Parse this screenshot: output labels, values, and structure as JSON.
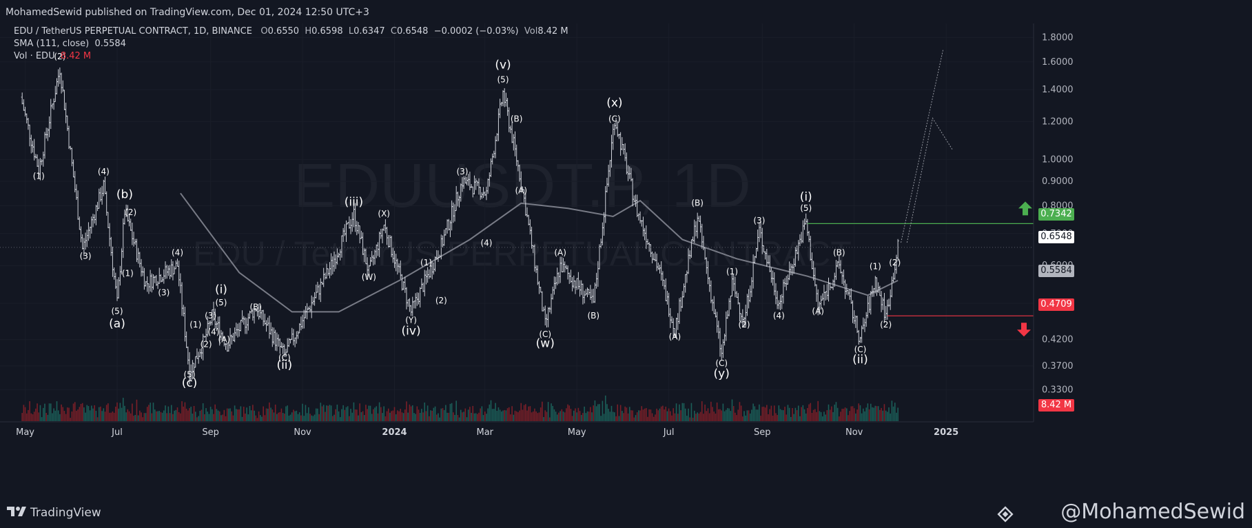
{
  "header": {
    "published": "MohamedSewid published on TradingView.com, Dec 01, 2024 12:50 UTC+3"
  },
  "legend": {
    "symbol": "EDU / TetherUS PERPETUAL CONTRACT, 1D, BINANCE",
    "o_label": "O",
    "o_value": "0.6550",
    "h_label": "H",
    "h_value": "0.6598",
    "l_label": "L",
    "l_value": "0.6347",
    "c_label": "C",
    "c_value": "0.6548",
    "change": "−0.0002 (−0.03%)",
    "vol_label": "Vol",
    "vol_value": "8.42 M",
    "sma_label": "SMA (111, close)",
    "sma_value": "0.5584",
    "volume_label": "Vol · EDU",
    "volume_value": "8.42 M"
  },
  "watermark": {
    "ticker": "EDUUSDT.P, 1D",
    "name": "EDU / TetherUS PERPETUAL CONTRACT"
  },
  "price_tags": {
    "resistance": "0.7342",
    "last": "0.6548",
    "sma": "0.5584",
    "support": "0.4709",
    "volume": "8.42 M"
  },
  "colors": {
    "background": "#131722",
    "up": "#d1d4dc",
    "down": "#d1d4dc",
    "sma": "#787b86",
    "resistance": "#4caf50",
    "support": "#f23645",
    "vol_up": "#1b5e58",
    "vol_down": "#7a1f28"
  },
  "chart_data": {
    "type": "candlestick",
    "symbol": "EDUUSDT.P",
    "interval": "1D",
    "y_axis": {
      "scale": "log",
      "ticks": [
        "1.8000",
        "1.6000",
        "1.4000",
        "1.2000",
        "1.0000",
        "0.9000",
        "0.8000",
        "0.7000",
        "0.6000",
        "0.5000",
        "0.4200",
        "0.3700",
        "0.3300"
      ],
      "ylim": [
        0.3,
        1.9
      ]
    },
    "x_axis": {
      "ticks": [
        "May",
        "Jul",
        "Sep",
        "Nov",
        "2024",
        "Mar",
        "May",
        "Jul",
        "Sep",
        "Nov",
        "2025"
      ]
    },
    "price_path": [
      {
        "x": "2023-04-28",
        "y": 1.35
      },
      {
        "x": "2023-05-10",
        "y": 0.95
      },
      {
        "x": "2023-05-24",
        "y": 1.55
      },
      {
        "x": "2023-06-08",
        "y": 0.65
      },
      {
        "x": "2023-06-22",
        "y": 0.88
      },
      {
        "x": "2023-07-01",
        "y": 0.5
      },
      {
        "x": "2023-07-06",
        "y": 0.78
      },
      {
        "x": "2023-07-20",
        "y": 0.55
      },
      {
        "x": "2023-08-10",
        "y": 0.6
      },
      {
        "x": "2023-08-18",
        "y": 0.36
      },
      {
        "x": "2023-08-28",
        "y": 0.42
      },
      {
        "x": "2023-09-02",
        "y": 0.47
      },
      {
        "x": "2023-09-12",
        "y": 0.41
      },
      {
        "x": "2023-10-01",
        "y": 0.49
      },
      {
        "x": "2023-10-20",
        "y": 0.39
      },
      {
        "x": "2023-11-20",
        "y": 0.6
      },
      {
        "x": "2023-12-05",
        "y": 0.77
      },
      {
        "x": "2023-12-15",
        "y": 0.58
      },
      {
        "x": "2023-12-25",
        "y": 0.73
      },
      {
        "x": "2024-01-12",
        "y": 0.48
      },
      {
        "x": "2024-02-01",
        "y": 0.66
      },
      {
        "x": "2024-02-15",
        "y": 0.9
      },
      {
        "x": "2024-03-02",
        "y": 0.85
      },
      {
        "x": "2024-03-13",
        "y": 1.38
      },
      {
        "x": "2024-03-25",
        "y": 0.9
      },
      {
        "x": "2024-04-10",
        "y": 0.45
      },
      {
        "x": "2024-04-20",
        "y": 0.6
      },
      {
        "x": "2024-05-12",
        "y": 0.5
      },
      {
        "x": "2024-05-26",
        "y": 1.22
      },
      {
        "x": "2024-06-10",
        "y": 0.78
      },
      {
        "x": "2024-06-25",
        "y": 0.58
      },
      {
        "x": "2024-07-05",
        "y": 0.44
      },
      {
        "x": "2024-07-20",
        "y": 0.76
      },
      {
        "x": "2024-08-05",
        "y": 0.39
      },
      {
        "x": "2024-08-12",
        "y": 0.55
      },
      {
        "x": "2024-08-20",
        "y": 0.46
      },
      {
        "x": "2024-08-30",
        "y": 0.71
      },
      {
        "x": "2024-09-12",
        "y": 0.5
      },
      {
        "x": "2024-09-30",
        "y": 0.74
      },
      {
        "x": "2024-10-08",
        "y": 0.49
      },
      {
        "x": "2024-10-22",
        "y": 0.6
      },
      {
        "x": "2024-11-05",
        "y": 0.42
      },
      {
        "x": "2024-11-15",
        "y": 0.56
      },
      {
        "x": "2024-11-22",
        "y": 0.47
      },
      {
        "x": "2024-11-30",
        "y": 0.6548
      }
    ],
    "sma": [
      {
        "x": "2023-08-12",
        "y": 0.85
      },
      {
        "x": "2023-09-20",
        "y": 0.58
      },
      {
        "x": "2023-10-25",
        "y": 0.48
      },
      {
        "x": "2023-11-25",
        "y": 0.48
      },
      {
        "x": "2024-01-05",
        "y": 0.56
      },
      {
        "x": "2024-02-20",
        "y": 0.68
      },
      {
        "x": "2024-03-25",
        "y": 0.81
      },
      {
        "x": "2024-04-25",
        "y": 0.79
      },
      {
        "x": "2024-05-25",
        "y": 0.76
      },
      {
        "x": "2024-06-12",
        "y": 0.82
      },
      {
        "x": "2024-07-10",
        "y": 0.68
      },
      {
        "x": "2024-08-15",
        "y": 0.62
      },
      {
        "x": "2024-10-01",
        "y": 0.57
      },
      {
        "x": "2024-11-10",
        "y": 0.52
      },
      {
        "x": "2024-11-30",
        "y": 0.5584
      }
    ],
    "levels": [
      {
        "name": "resistance",
        "y": 0.7342
      },
      {
        "name": "support",
        "y": 0.4709
      }
    ],
    "projection": [
      {
        "x": "2024-12-02",
        "y": 0.67
      },
      {
        "x": "2024-12-30",
        "y": 1.7
      }
    ],
    "projection_alt": [
      {
        "x": "2024-12-06",
        "y": 0.67
      },
      {
        "x": "2024-12-23",
        "y": 1.22
      },
      {
        "x": "2025-01-05",
        "y": 1.05
      }
    ],
    "wave_labels": [
      {
        "x": "2023-05-10",
        "y": 0.91,
        "text": "(1)"
      },
      {
        "x": "2023-05-24",
        "y": 1.62,
        "text": "(2)"
      },
      {
        "x": "2023-06-10",
        "y": 0.62,
        "text": "(3)"
      },
      {
        "x": "2023-06-22",
        "y": 0.93,
        "text": "(4)"
      },
      {
        "x": "2023-07-01",
        "y": 0.475,
        "text": "(5)"
      },
      {
        "x": "2023-07-01",
        "y": 0.445,
        "text": "(a)"
      },
      {
        "x": "2023-07-06",
        "y": 0.83,
        "text": "(b)"
      },
      {
        "x": "2023-07-10",
        "y": 0.765,
        "text": "(2)"
      },
      {
        "x": "2023-07-08",
        "y": 0.57,
        "text": "(1)"
      },
      {
        "x": "2023-08-01",
        "y": 0.52,
        "text": "(3)"
      },
      {
        "x": "2023-08-10",
        "y": 0.63,
        "text": "(4)"
      },
      {
        "x": "2023-08-18",
        "y": 0.35,
        "text": "(5)"
      },
      {
        "x": "2023-08-18",
        "y": 0.335,
        "text": "(c)"
      },
      {
        "x": "2023-08-22",
        "y": 0.445,
        "text": "(1)"
      },
      {
        "x": "2023-08-29",
        "y": 0.405,
        "text": "(2)"
      },
      {
        "x": "2023-09-01",
        "y": 0.465,
        "text": "(3)"
      },
      {
        "x": "2023-09-03",
        "y": 0.43,
        "text": "(4)"
      },
      {
        "x": "2023-09-08",
        "y": 0.495,
        "text": "(5)"
      },
      {
        "x": "2023-09-08",
        "y": 0.525,
        "text": "(i)"
      },
      {
        "x": "2023-09-10",
        "y": 0.415,
        "text": "(A)"
      },
      {
        "x": "2023-10-01",
        "y": 0.485,
        "text": "(B)"
      },
      {
        "x": "2023-10-20",
        "y": 0.38,
        "text": "(C)"
      },
      {
        "x": "2023-10-20",
        "y": 0.365,
        "text": "(ii)"
      },
      {
        "x": "2023-12-05",
        "y": 0.8,
        "text": "(iii)"
      },
      {
        "x": "2023-12-15",
        "y": 0.56,
        "text": "(W)"
      },
      {
        "x": "2023-12-25",
        "y": 0.76,
        "text": "(X)"
      },
      {
        "x": "2024-01-12",
        "y": 0.455,
        "text": "(Y)"
      },
      {
        "x": "2024-01-12",
        "y": 0.43,
        "text": "(iv)"
      },
      {
        "x": "2024-01-22",
        "y": 0.6,
        "text": "(1)"
      },
      {
        "x": "2024-02-01",
        "y": 0.5,
        "text": "(2)"
      },
      {
        "x": "2024-02-15",
        "y": 0.93,
        "text": "(3)"
      },
      {
        "x": "2024-03-02",
        "y": 0.66,
        "text": "(4)"
      },
      {
        "x": "2024-03-13",
        "y": 1.45,
        "text": "(5)"
      },
      {
        "x": "2024-03-13",
        "y": 1.55,
        "text": "(v)"
      },
      {
        "x": "2024-03-25",
        "y": 0.85,
        "text": "(A)"
      },
      {
        "x": "2024-03-22",
        "y": 1.2,
        "text": "(B)"
      },
      {
        "x": "2024-04-10",
        "y": 0.425,
        "text": "(C)"
      },
      {
        "x": "2024-04-10",
        "y": 0.405,
        "text": "(w)"
      },
      {
        "x": "2024-04-20",
        "y": 0.63,
        "text": "(A)"
      },
      {
        "x": "2024-05-12",
        "y": 0.465,
        "text": "(B)"
      },
      {
        "x": "2024-05-26",
        "y": 1.2,
        "text": "(C)"
      },
      {
        "x": "2024-05-26",
        "y": 1.29,
        "text": "(x)"
      },
      {
        "x": "2024-07-05",
        "y": 0.42,
        "text": "(A)"
      },
      {
        "x": "2024-07-20",
        "y": 0.8,
        "text": "(B)"
      },
      {
        "x": "2024-08-05",
        "y": 0.37,
        "text": "(C)"
      },
      {
        "x": "2024-08-05",
        "y": 0.35,
        "text": "(y)"
      },
      {
        "x": "2024-08-12",
        "y": 0.575,
        "text": "(1)"
      },
      {
        "x": "2024-08-20",
        "y": 0.445,
        "text": "(2)"
      },
      {
        "x": "2024-08-30",
        "y": 0.735,
        "text": "(3)"
      },
      {
        "x": "2024-09-12",
        "y": 0.465,
        "text": "(4)"
      },
      {
        "x": "2024-09-30",
        "y": 0.78,
        "text": "(5)"
      },
      {
        "x": "2024-09-30",
        "y": 0.82,
        "text": "(i)"
      },
      {
        "x": "2024-10-08",
        "y": 0.475,
        "text": "(A)"
      },
      {
        "x": "2024-10-22",
        "y": 0.63,
        "text": "(B)"
      },
      {
        "x": "2024-11-05",
        "y": 0.395,
        "text": "(C)"
      },
      {
        "x": "2024-11-05",
        "y": 0.375,
        "text": "(ii)"
      },
      {
        "x": "2024-11-15",
        "y": 0.59,
        "text": "(1)"
      },
      {
        "x": "2024-11-22",
        "y": 0.445,
        "text": "(2)"
      },
      {
        "x": "2024-11-28",
        "y": 0.6,
        "text": "(2)"
      }
    ]
  }
}
